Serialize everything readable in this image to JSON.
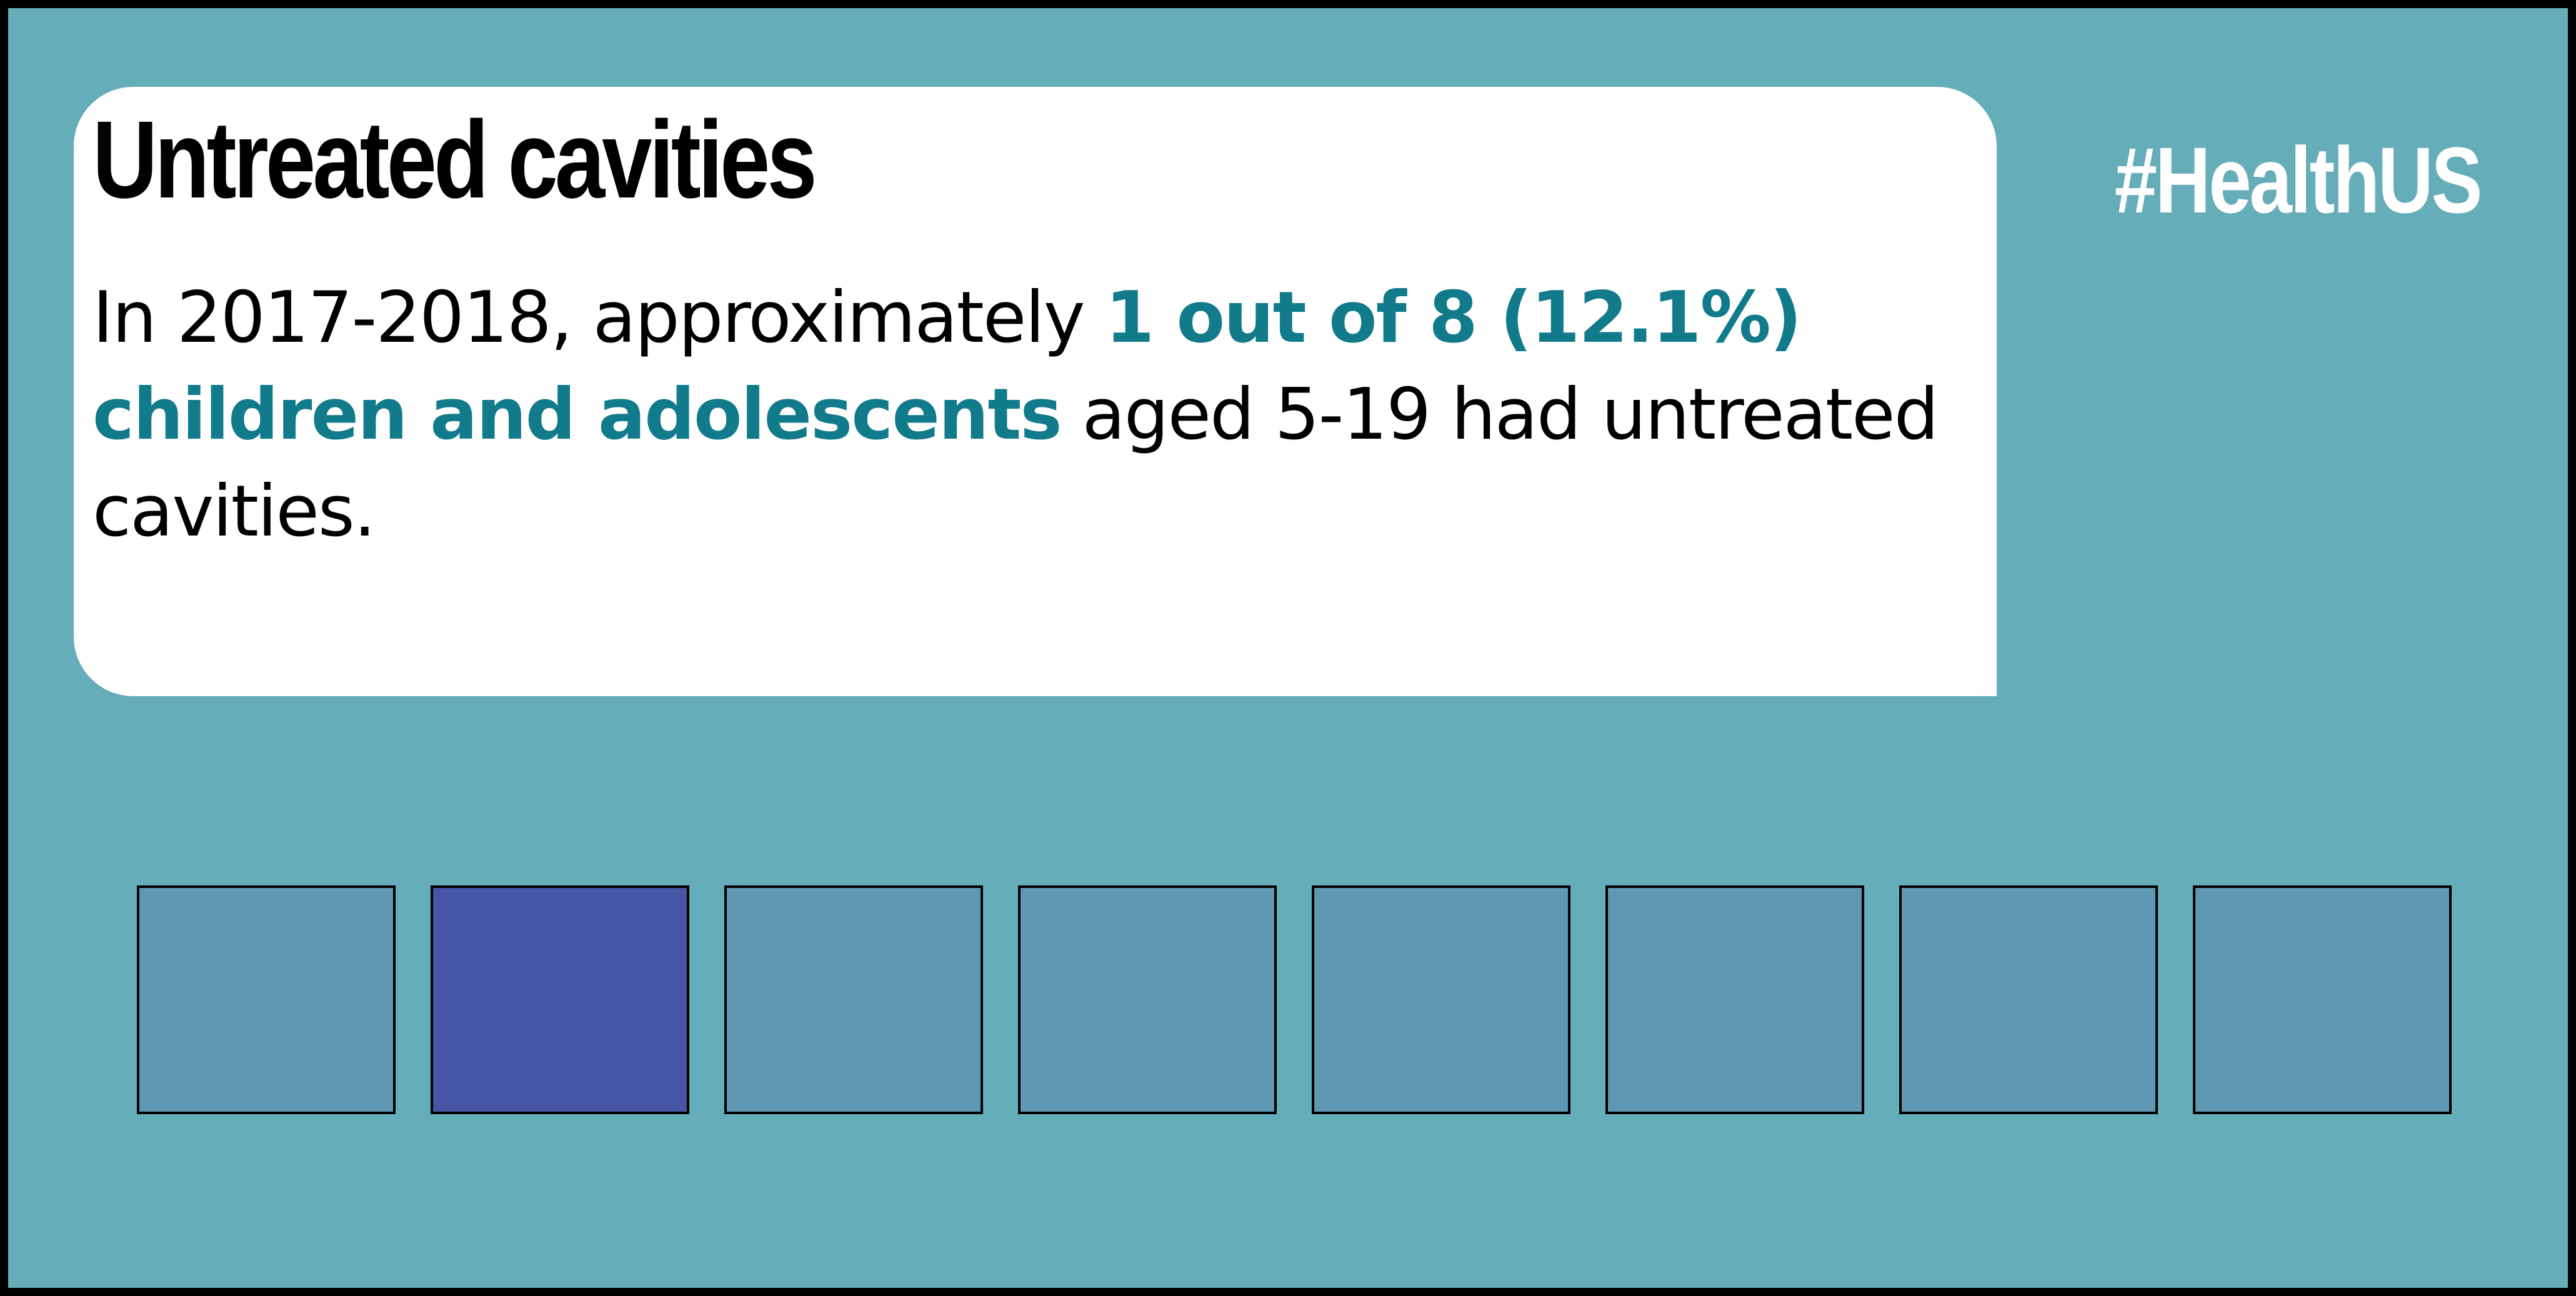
{
  "card": {
    "title": "Untreated cavities",
    "line1_plain": "In 2017-2018, approximately ",
    "line1_highlight": "1 out of 8 (12.1%)",
    "line2_highlight": "children and adolescents",
    "line2_plain": " aged 5-19 had untreated",
    "line3_plain": "cavities."
  },
  "hashtag": "#HealthUS",
  "pictogram": {
    "total": 8,
    "highlighted": 1,
    "highlighted_index": 1,
    "fill_color": "#5f98b3",
    "highlight_color": "#4656a5"
  },
  "colors": {
    "background": "#65adb9",
    "card": "#ffffff",
    "accent_text": "#117a8b"
  }
}
